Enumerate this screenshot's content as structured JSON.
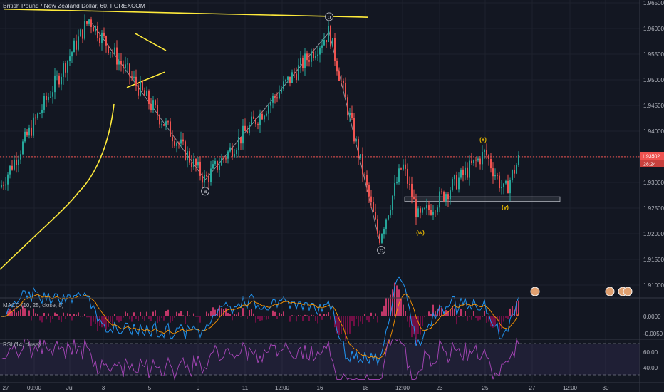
{
  "chart_data": [
    {
      "type": "candlestick",
      "title": "British Pound / New Zealand Dollar, 60, FOREXCOM",
      "y_ticks": [
        1.91,
        1.915,
        1.92,
        1.925,
        1.93,
        1.935,
        1.94,
        1.945,
        1.95,
        1.955,
        1.96,
        1.965
      ],
      "y_tick_labels": [
        "1.91000",
        "1.91500",
        "1.92000",
        "1.92500",
        "1.93000",
        "1.93500",
        "1.94000",
        "1.94500",
        "1.95000",
        "1.95500",
        "1.96000",
        "1.96500"
      ],
      "x_tick_labels": [
        "27",
        "09:00",
        "Jul",
        "3",
        "5",
        "9",
        "11",
        "12:00",
        "16",
        "18",
        "12:00",
        "23",
        "25",
        "27",
        "12:00",
        "30"
      ],
      "ylim": [
        1.907,
        1.967
      ],
      "current_price": "1.93502",
      "countdown": "28:24",
      "grid": true,
      "accent_colors": {
        "up": "#26a69a",
        "down": "#ef5350",
        "price_line": "#ef5350",
        "annotation": "#ffeb3b",
        "wave_label": "#e8b900"
      },
      "waypoints": [
        {
          "label": "start",
          "value": 1.929
        },
        {
          "label": "high1",
          "value": 1.9618
        },
        {
          "label": "a",
          "value": 1.9305
        },
        {
          "label": "b",
          "value": 1.9593
        },
        {
          "label": "c",
          "value": 1.919
        },
        {
          "label": "w-bounce",
          "value": 1.9335
        },
        {
          "label": "w",
          "value": 1.9228
        },
        {
          "label": "x",
          "value": 1.9358
        },
        {
          "label": "y",
          "value": 1.928
        },
        {
          "label": "last",
          "value": 1.935
        }
      ],
      "wave_labels": [
        {
          "text": "a",
          "value": 1.9283
        },
        {
          "text": "b",
          "value": 1.9623
        },
        {
          "text": "c",
          "value": 1.9168
        },
        {
          "text": "(w)",
          "value": 1.9203
        },
        {
          "text": "(x)",
          "value": 1.9384
        },
        {
          "text": "(y)",
          "value": 1.9252
        }
      ],
      "support_zone": {
        "low": 1.9263,
        "high": 1.9272
      },
      "event_badges": 4
    },
    {
      "type": "line",
      "title": "MACD (10, 25, close, 8)",
      "y_tick_labels": [
        "0.0000",
        "-0.0050"
      ],
      "series": [
        {
          "name": "MACD"
        },
        {
          "name": "Signal"
        },
        {
          "name": "Histogram"
        }
      ]
    },
    {
      "type": "line",
      "title": "RSI (14, close)",
      "y_tick_labels": [
        "60.00",
        "40.00"
      ],
      "bands": [
        30,
        70
      ],
      "series": [
        {
          "name": "RSI"
        }
      ]
    }
  ]
}
